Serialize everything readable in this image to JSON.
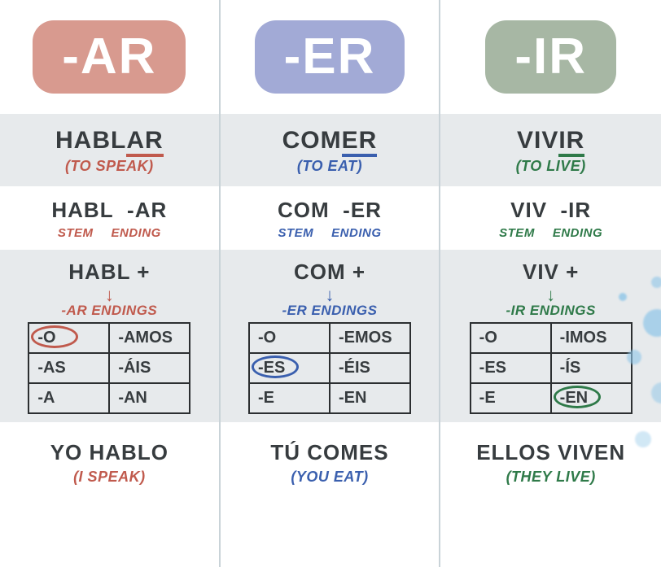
{
  "columns": [
    {
      "pill_text": "-AR",
      "pill_bg": "#d89a8f",
      "accent": "#c05a4d",
      "infinitive_stem": "HABL",
      "infinitive_underlined": "AR",
      "translation": "(TO SPEAK)",
      "split_stem": "HABL",
      "split_ending": "-AR",
      "stem_label": "STEM",
      "ending_label": "ENDING",
      "plus_text": "HABL +",
      "endings_label": "-AR ENDINGS",
      "endings": [
        [
          "-O",
          "-AMOS"
        ],
        [
          "-AS",
          "-ÁIS"
        ],
        [
          "-A",
          "-AN"
        ]
      ],
      "circled": [
        0,
        0
      ],
      "example": "YO HABLO",
      "example_trans": "(I SPEAK)"
    },
    {
      "pill_text": "-ER",
      "pill_bg": "#a2aad6",
      "accent": "#3a5fae",
      "infinitive_stem": "COM",
      "infinitive_underlined": "ER",
      "translation": "(TO EAT)",
      "split_stem": "COM",
      "split_ending": "-ER",
      "stem_label": "STEM",
      "ending_label": "ENDING",
      "plus_text": "COM +",
      "endings_label": "-ER ENDINGS",
      "endings": [
        [
          "-O",
          "-EMOS"
        ],
        [
          "-ES",
          "-ÉIS"
        ],
        [
          "-E",
          "-EN"
        ]
      ],
      "circled": [
        1,
        0
      ],
      "example": "TÚ COMES",
      "example_trans": "(YOU EAT)"
    },
    {
      "pill_text": "-IR",
      "pill_bg": "#a7b7a4",
      "accent": "#2f7a49",
      "infinitive_stem": "VIV",
      "infinitive_underlined": "IR",
      "translation": "(TO LIVE)",
      "split_stem": "VIV",
      "split_ending": "-IR",
      "stem_label": "STEM",
      "ending_label": "ENDING",
      "plus_text": "VIV +",
      "endings_label": "-IR ENDINGS",
      "endings": [
        [
          "-O",
          "-IMOS"
        ],
        [
          "-ES",
          "-ÍS"
        ],
        [
          "-E",
          "-EN"
        ]
      ],
      "circled": [
        2,
        1
      ],
      "example": "ELLOS VIVEN",
      "example_trans": "(THEY LIVE)"
    }
  ],
  "splatter_color": "#8fc6e8"
}
